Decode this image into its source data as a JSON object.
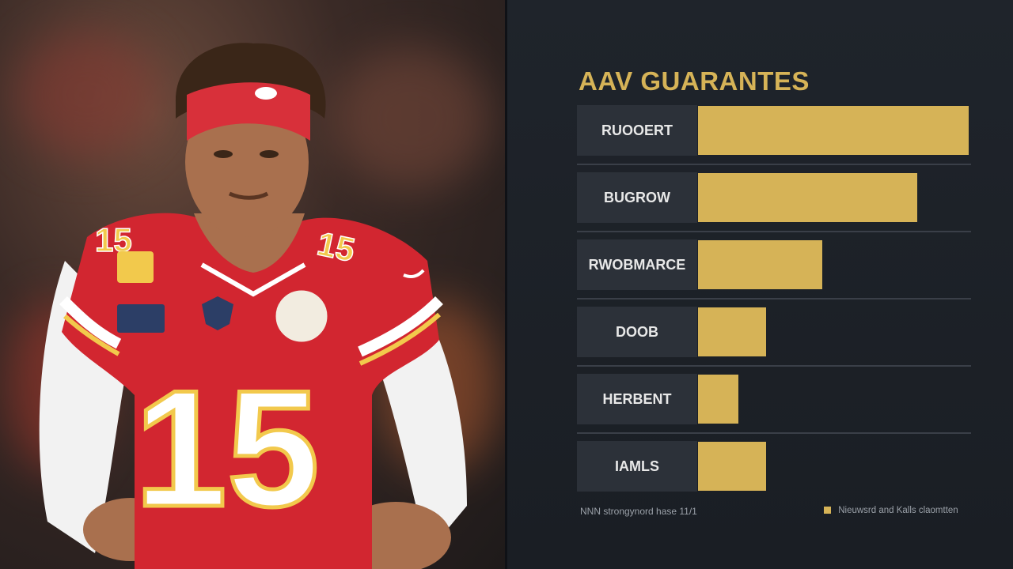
{
  "chart_data": {
    "type": "bar",
    "orientation": "horizontal",
    "title": "AAV GUARANTES",
    "categories": [
      "RUOOERT",
      "BUGROW",
      "RWOBMARCE",
      "DOOB",
      "HERBENT",
      "IAMLS"
    ],
    "series": [
      {
        "values": [
          100,
          81,
          46,
          25,
          15,
          25
        ]
      }
    ],
    "xlim": [
      0,
      100
    ],
    "colors": {
      "bar": "#d6b357",
      "label_bg": "#2c3139"
    },
    "legend_left": "NNN strongynord hase 11/1",
    "legend_right": "Nieuwsrd and Kalls claomtten",
    "legend_placement": "bottom"
  },
  "photo": {
    "jersey_number": "15",
    "colors": {
      "jersey": "#d22630",
      "trim": "#f2c94c",
      "headband": "#d8303a",
      "sleeve": "#f2f2f2"
    }
  }
}
